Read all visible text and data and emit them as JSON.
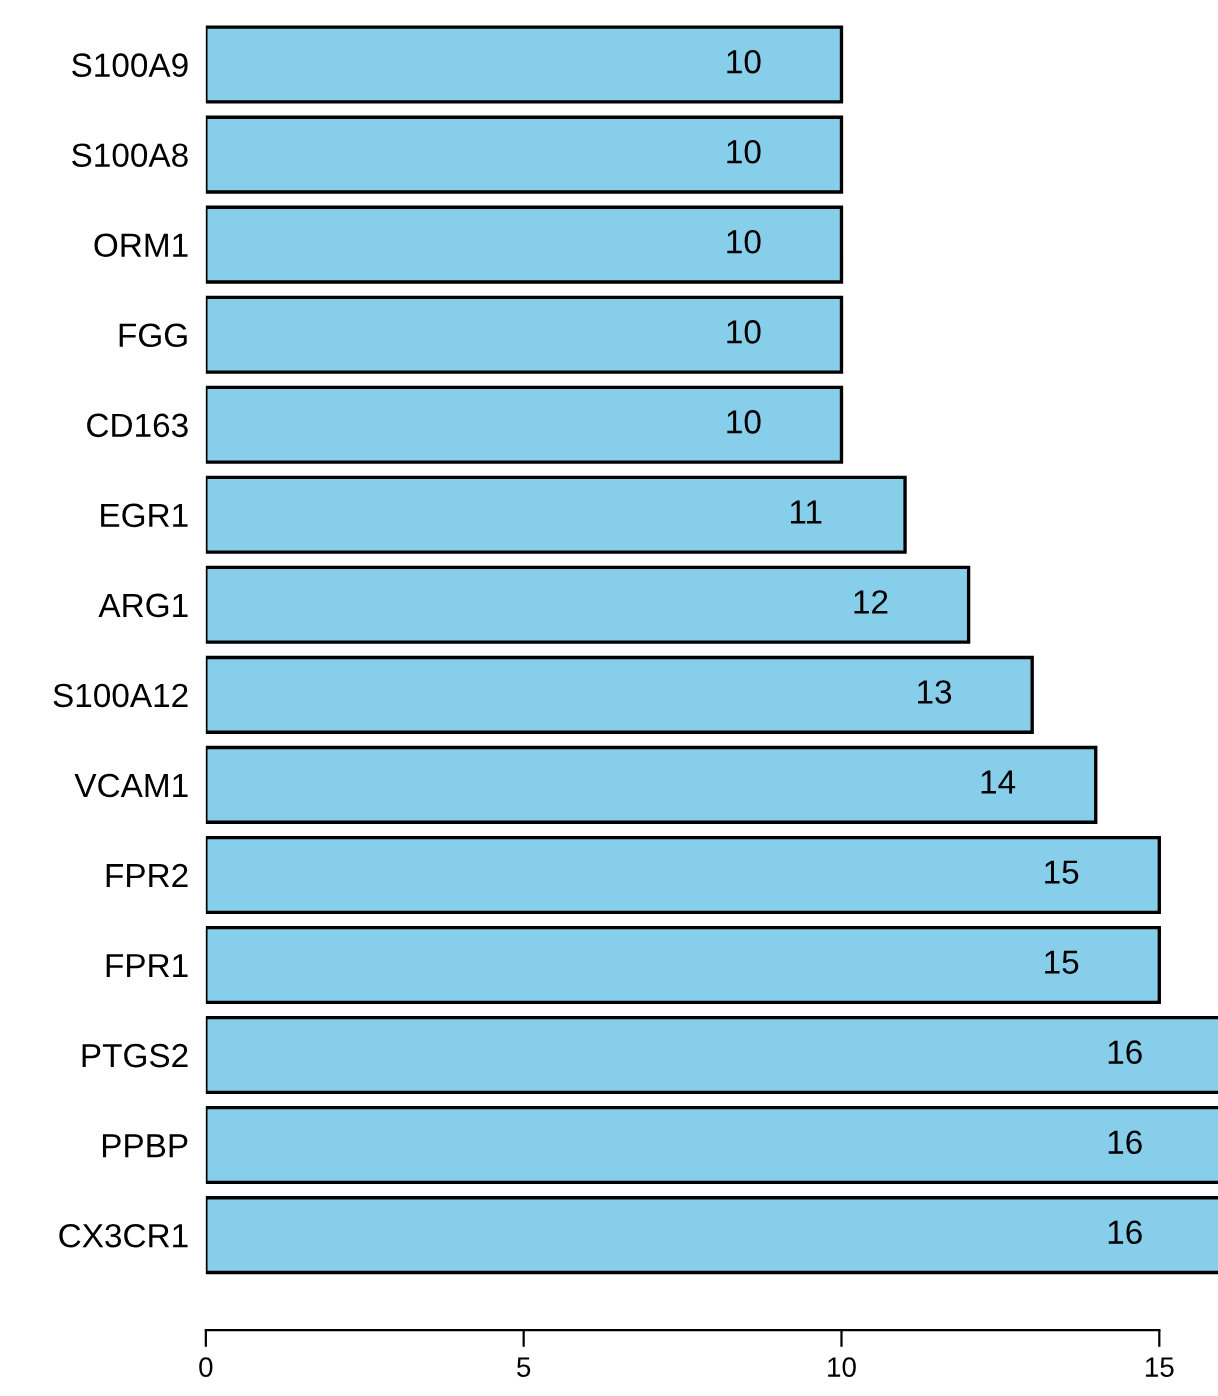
{
  "chart_data": {
    "type": "bar",
    "orientation": "horizontal",
    "categories": [
      "S100A9",
      "S100A8",
      "ORM1",
      "FGG",
      "CD163",
      "EGR1",
      "ARG1",
      "S100A12",
      "VCAM1",
      "FPR2",
      "FPR1",
      "PTGS2",
      "PPBP",
      "CX3CR1"
    ],
    "values": [
      10,
      10,
      10,
      10,
      10,
      11,
      12,
      13,
      14,
      15,
      15,
      16,
      16,
      16
    ],
    "color": "#87ceeb",
    "xlim": [
      0,
      16
    ],
    "xticks": [
      0,
      5,
      10,
      15
    ],
    "data_labels": true,
    "grid": false,
    "legend": false
  }
}
